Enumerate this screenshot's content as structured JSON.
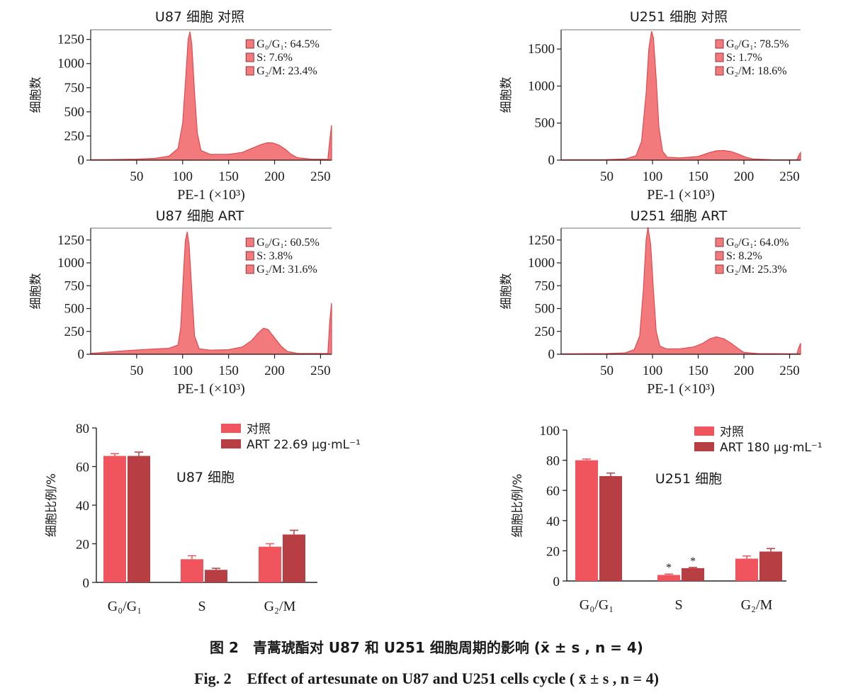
{
  "histograms": [
    {
      "id": "u87-ctrl",
      "title": "U87 细胞  对照",
      "ylabel": "细胞数",
      "xlabel": "PE-1 (×10³)",
      "xticks": [
        "50",
        "100",
        "150",
        "200",
        "250"
      ],
      "xtick_values": [
        50,
        100,
        150,
        200,
        250
      ],
      "yticks": [
        "0",
        "250",
        "500",
        "750",
        "1000",
        "1250"
      ],
      "ytick_values": [
        0,
        250,
        500,
        750,
        1000,
        1250
      ],
      "ylim": [
        0,
        1350
      ],
      "xlim": [
        0,
        262
      ],
      "gates": [
        "G₀/G₁: 64.5%",
        "S: 7.6%",
        "G₂/M: 23.4%"
      ],
      "curve": [
        [
          0,
          5
        ],
        [
          20,
          6
        ],
        [
          50,
          10
        ],
        [
          70,
          18
        ],
        [
          85,
          40
        ],
        [
          95,
          120
        ],
        [
          100,
          380
        ],
        [
          103,
          800
        ],
        [
          106,
          1250
        ],
        [
          108,
          1330
        ],
        [
          110,
          1200
        ],
        [
          113,
          700
        ],
        [
          116,
          280
        ],
        [
          120,
          100
        ],
        [
          130,
          60
        ],
        [
          150,
          60
        ],
        [
          165,
          80
        ],
        [
          175,
          120
        ],
        [
          185,
          160
        ],
        [
          192,
          180
        ],
        [
          198,
          178
        ],
        [
          205,
          155
        ],
        [
          212,
          110
        ],
        [
          218,
          60
        ],
        [
          225,
          25
        ],
        [
          240,
          10
        ],
        [
          258,
          8
        ],
        [
          260,
          200
        ],
        [
          262,
          360
        ]
      ]
    },
    {
      "id": "u251-ctrl",
      "title": "U251 细胞  对照",
      "ylabel": "细胞数",
      "xlabel": "PE-1 (×10³)",
      "xticks": [
        "50",
        "100",
        "150",
        "200",
        "250"
      ],
      "xtick_values": [
        50,
        100,
        150,
        200,
        250
      ],
      "yticks": [
        "0",
        "500",
        "1000",
        "1500"
      ],
      "ytick_values": [
        0,
        500,
        1000,
        1500
      ],
      "ylim": [
        0,
        1760
      ],
      "xlim": [
        0,
        262
      ],
      "gates": [
        "G₀/G₁: 78.5%",
        "S: 1.7%",
        "G₂/M: 18.6%"
      ],
      "curve": [
        [
          0,
          5
        ],
        [
          20,
          6
        ],
        [
          50,
          8
        ],
        [
          70,
          15
        ],
        [
          82,
          60
        ],
        [
          88,
          250
        ],
        [
          93,
          900
        ],
        [
          96,
          1500
        ],
        [
          99,
          1740
        ],
        [
          101,
          1650
        ],
        [
          104,
          1100
        ],
        [
          107,
          450
        ],
        [
          111,
          120
        ],
        [
          116,
          40
        ],
        [
          130,
          30
        ],
        [
          150,
          50
        ],
        [
          162,
          100
        ],
        [
          170,
          125
        ],
        [
          178,
          130
        ],
        [
          186,
          115
        ],
        [
          194,
          80
        ],
        [
          202,
          40
        ],
        [
          210,
          15
        ],
        [
          230,
          6
        ],
        [
          258,
          5
        ],
        [
          260,
          60
        ],
        [
          262,
          100
        ]
      ]
    },
    {
      "id": "u87-art",
      "title": "U87 细胞  ART",
      "ylabel": "细胞数",
      "xlabel": "PE-1 (×10³)",
      "xticks": [
        "50",
        "100",
        "150",
        "200",
        "250"
      ],
      "xtick_values": [
        50,
        100,
        150,
        200,
        250
      ],
      "yticks": [
        "0",
        "250",
        "500",
        "750",
        "1000",
        "1250"
      ],
      "ytick_values": [
        0,
        250,
        500,
        750,
        1000,
        1250
      ],
      "ylim": [
        0,
        1380
      ],
      "xlim": [
        0,
        262
      ],
      "gates": [
        "G₀/G₁: 60.5%",
        "S: 3.8%",
        "G₂/M: 31.6%"
      ],
      "curve": [
        [
          0,
          10
        ],
        [
          15,
          20
        ],
        [
          40,
          40
        ],
        [
          65,
          55
        ],
        [
          85,
          65
        ],
        [
          95,
          100
        ],
        [
          98,
          300
        ],
        [
          101,
          900
        ],
        [
          103,
          1250
        ],
        [
          105,
          1340
        ],
        [
          107,
          1200
        ],
        [
          110,
          700
        ],
        [
          113,
          200
        ],
        [
          118,
          60
        ],
        [
          130,
          45
        ],
        [
          150,
          50
        ],
        [
          165,
          80
        ],
        [
          175,
          150
        ],
        [
          182,
          230
        ],
        [
          188,
          285
        ],
        [
          193,
          270
        ],
        [
          200,
          180
        ],
        [
          207,
          90
        ],
        [
          214,
          30
        ],
        [
          225,
          10
        ],
        [
          258,
          8
        ],
        [
          260,
          350
        ],
        [
          262,
          560
        ]
      ]
    },
    {
      "id": "u251-art",
      "title": "U251 细胞  ART",
      "ylabel": "细胞数",
      "xlabel": "PE-1 (×10³)",
      "xticks": [
        "50",
        "100",
        "150",
        "200",
        "250"
      ],
      "xtick_values": [
        50,
        100,
        150,
        200,
        250
      ],
      "yticks": [
        "0",
        "250",
        "500",
        "750",
        "1000",
        "1250"
      ],
      "ytick_values": [
        0,
        250,
        500,
        750,
        1000,
        1250
      ],
      "ylim": [
        0,
        1380
      ],
      "xlim": [
        0,
        262
      ],
      "gates": [
        "G₀/G₁: 64.0%",
        "S: 8.2%",
        "G₂/M: 25.3%"
      ],
      "curve": [
        [
          0,
          5
        ],
        [
          20,
          6
        ],
        [
          50,
          8
        ],
        [
          70,
          15
        ],
        [
          80,
          50
        ],
        [
          86,
          200
        ],
        [
          90,
          700
        ],
        [
          93,
          1250
        ],
        [
          95,
          1390
        ],
        [
          98,
          1200
        ],
        [
          101,
          700
        ],
        [
          104,
          250
        ],
        [
          108,
          90
        ],
        [
          115,
          60
        ],
        [
          130,
          60
        ],
        [
          145,
          80
        ],
        [
          155,
          120
        ],
        [
          163,
          170
        ],
        [
          170,
          190
        ],
        [
          178,
          170
        ],
        [
          186,
          120
        ],
        [
          194,
          60
        ],
        [
          200,
          20
        ],
        [
          215,
          8
        ],
        [
          258,
          5
        ],
        [
          260,
          70
        ],
        [
          262,
          120
        ]
      ]
    }
  ],
  "chart_data": [
    {
      "type": "bar",
      "title": "U87 细胞",
      "ylabel": "细胞比例/%",
      "categories": [
        "G₀/G₁",
        "S",
        "G₂/M"
      ],
      "ylim": [
        0,
        80
      ],
      "yticks": [
        "0",
        "20",
        "40",
        "60",
        "80"
      ],
      "ytick_values": [
        0,
        20,
        40,
        60,
        80
      ],
      "series": [
        {
          "name": "对照",
          "color": "#f0545c",
          "values": [
            65.5,
            12.0,
            18.5
          ],
          "errors": [
            1.2,
            1.8,
            1.5
          ]
        },
        {
          "name": "ART 22.69 μg·mL⁻¹",
          "color": "#b73e43",
          "values": [
            65.5,
            6.5,
            24.8
          ],
          "errors": [
            2.0,
            0.8,
            2.2
          ]
        }
      ],
      "significance": [
        "",
        "",
        "",
        "",
        "",
        ""
      ]
    },
    {
      "type": "bar",
      "title": "U251 细胞",
      "ylabel": "细胞比例/%",
      "categories": [
        "G₀/G₁",
        "S",
        "G₂/M"
      ],
      "ylim": [
        0,
        100
      ],
      "yticks": [
        "0",
        "20",
        "40",
        "60",
        "80",
        "100"
      ],
      "ytick_values": [
        0,
        20,
        40,
        60,
        80,
        100
      ],
      "series": [
        {
          "name": "对照",
          "color": "#f0545c",
          "values": [
            80.0,
            4.0,
            14.8
          ],
          "errors": [
            0.8,
            0.6,
            1.8
          ]
        },
        {
          "name": "ART 180 μg·mL⁻¹",
          "color": "#b73e43",
          "values": [
            69.5,
            8.5,
            19.5
          ],
          "errors": [
            2.0,
            0.5,
            2.0
          ]
        }
      ],
      "significance": [
        "",
        "*",
        "",
        "",
        "*",
        ""
      ]
    }
  ],
  "caption": {
    "cn": "图 2　青蒿琥酯对 U87 和 U251 细胞周期的影响 (x̄ ± s , n = 4)",
    "en": "Fig. 2　Effect of artesunate on U87 and U251 cells cycle ( x̄ ± s , n = 4)"
  }
}
